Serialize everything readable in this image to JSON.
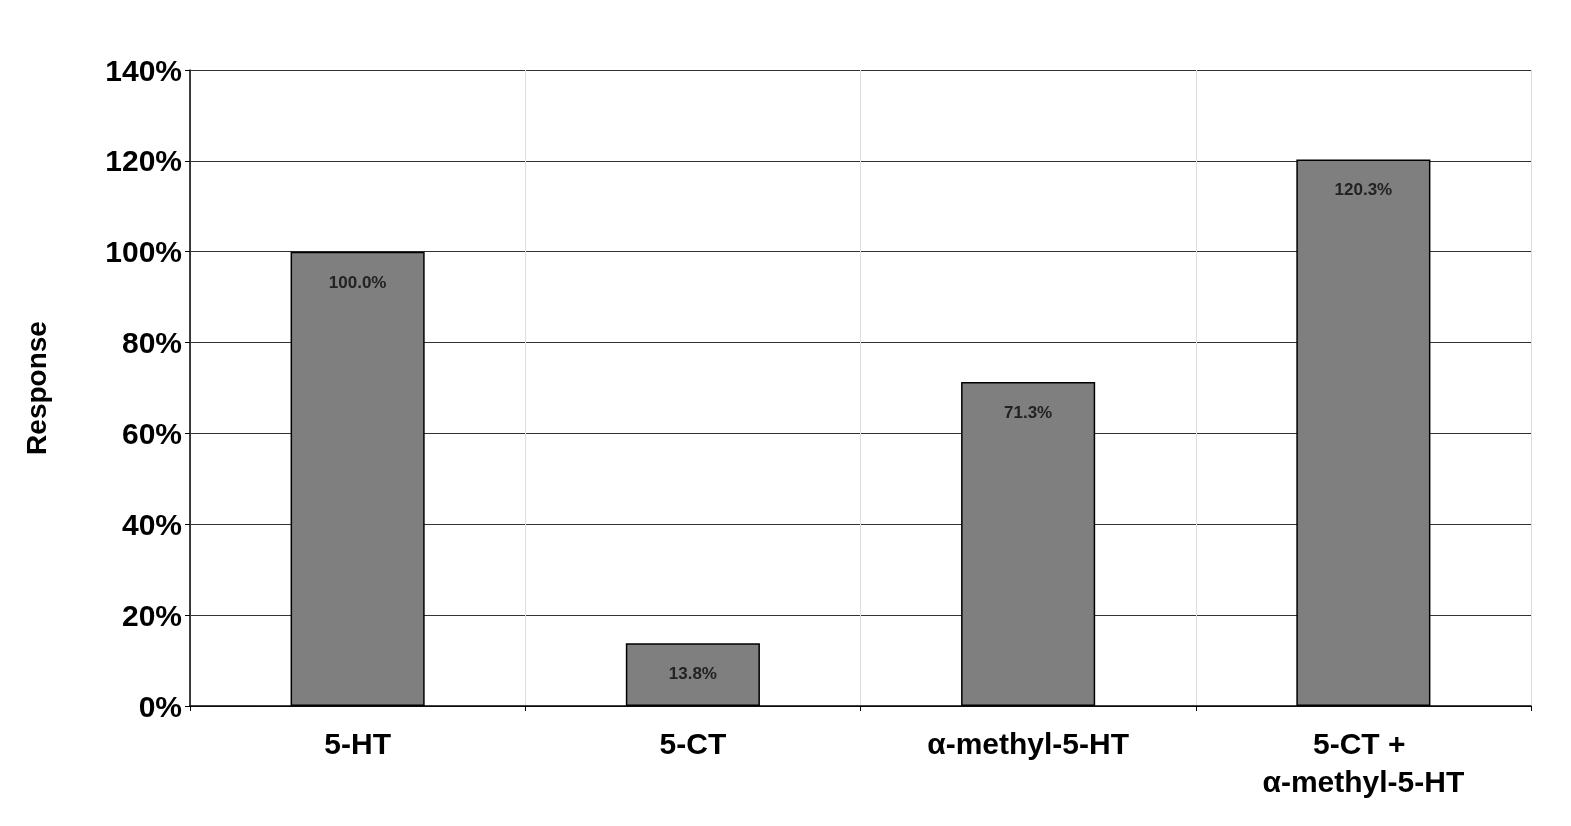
{
  "chart_data": {
    "type": "bar",
    "ylabel": "Response",
    "categories": [
      "5-HT",
      "5-CT",
      "α-methyl-5-HT",
      "5-CT + α-methyl-5-HT"
    ],
    "values": [
      100.0,
      13.8,
      71.3,
      120.3
    ],
    "value_labels": [
      "100.0%",
      "13.8%",
      "71.3%",
      "120.3%"
    ],
    "color": "#7f7f7f",
    "ylim": [
      0,
      140
    ],
    "yticks": [
      {
        "value": 0,
        "label": "0%"
      },
      {
        "value": 20,
        "label": "20%"
      },
      {
        "value": 40,
        "label": "40%"
      },
      {
        "value": 60,
        "label": "60%"
      },
      {
        "value": 80,
        "label": "80%"
      },
      {
        "value": 100,
        "label": "100%"
      },
      {
        "value": 120,
        "label": "120%"
      },
      {
        "value": 140,
        "label": "140%"
      }
    ],
    "grid": true
  }
}
